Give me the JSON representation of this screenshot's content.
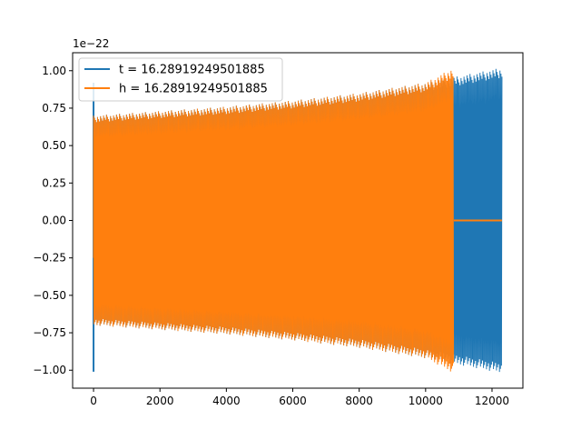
{
  "chart_data": {
    "type": "line",
    "title": "",
    "xlabel": "",
    "ylabel": "",
    "y_offset_label": "1e−22",
    "xlim": [
      -630,
      12930
    ],
    "ylim": [
      -1.12,
      1.12
    ],
    "x_ticks": [
      {
        "value": 0,
        "label": "0"
      },
      {
        "value": 2000,
        "label": "2000"
      },
      {
        "value": 4000,
        "label": "4000"
      },
      {
        "value": 6000,
        "label": "6000"
      },
      {
        "value": 8000,
        "label": "8000"
      },
      {
        "value": 10000,
        "label": "10000"
      },
      {
        "value": 12000,
        "label": "12000"
      }
    ],
    "y_ticks": [
      {
        "value": 1.0,
        "label": "1.00"
      },
      {
        "value": 0.75,
        "label": "0.75"
      },
      {
        "value": 0.5,
        "label": "0.50"
      },
      {
        "value": 0.25,
        "label": "0.25"
      },
      {
        "value": 0.0,
        "label": "0.00"
      },
      {
        "value": -0.25,
        "label": "−0.25"
      },
      {
        "value": -0.5,
        "label": "−0.50"
      },
      {
        "value": -0.75,
        "label": "−0.75"
      },
      {
        "value": -1.0,
        "label": "−1.00"
      }
    ],
    "grid": false,
    "legend_position": "top-left",
    "series": [
      {
        "name": "t = 16.28919249501885",
        "color": "#1f77b4",
        "kind": "oscillation",
        "spike": {
          "x": 0,
          "ymin": -1.01,
          "ymax": 0.92
        },
        "envelope": [
          [
            0,
            0.7
          ],
          [
            2000,
            0.73
          ],
          [
            4000,
            0.76
          ],
          [
            6000,
            0.8
          ],
          [
            8000,
            0.85
          ],
          [
            10000,
            0.92
          ],
          [
            12300,
            1.02
          ]
        ],
        "x_end": 12300
      },
      {
        "name": "h = 16.28919249501885",
        "color": "#ff7f0e",
        "kind": "oscillation",
        "start_values": [
          0.25,
          -0.25
        ],
        "envelope": [
          [
            0,
            0.7
          ],
          [
            2000,
            0.73
          ],
          [
            4000,
            0.76
          ],
          [
            6000,
            0.8
          ],
          [
            8000,
            0.85
          ],
          [
            10000,
            0.92
          ],
          [
            10850,
            1.02
          ]
        ],
        "x_end": 10850,
        "flat_segment": {
          "x_start": 10850,
          "x_end": 12300,
          "y": 0.0
        }
      }
    ]
  }
}
